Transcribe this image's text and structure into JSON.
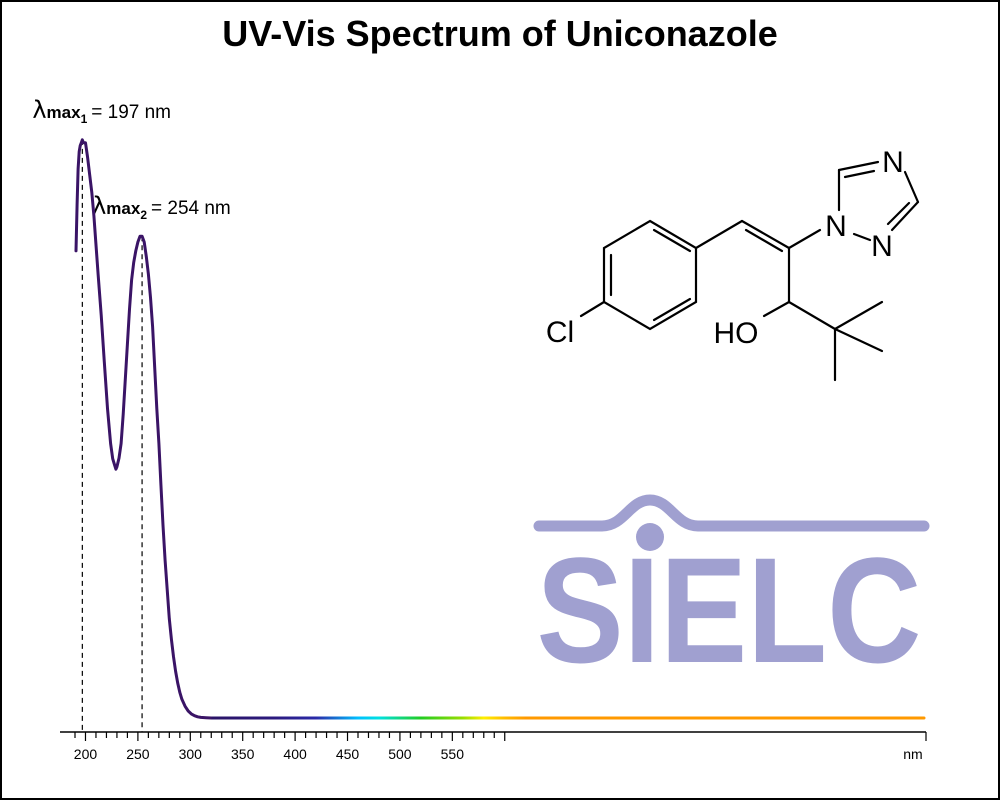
{
  "chart_data": {
    "type": "line",
    "title": "UV-Vis Spectrum of Uniconazole",
    "xlabel": "nm",
    "ylabel": "",
    "xlim": [
      190,
      1000
    ],
    "ylim": [
      0,
      1.0
    ],
    "x_ticks": [
      200,
      250,
      300,
      350,
      400,
      450,
      500,
      550
    ],
    "x_tick_labels": [
      "200",
      "250",
      "300",
      "350",
      "400",
      "450",
      "500",
      "550"
    ],
    "x_unit_label": "nm",
    "grid": false,
    "series": [
      {
        "x": [
          191,
          192,
          193,
          194,
          195,
          196,
          197,
          198,
          199,
          200,
          202,
          204,
          206,
          208,
          210,
          212,
          215,
          218,
          221,
          224,
          226,
          228,
          229,
          230,
          232,
          234,
          236,
          238,
          240,
          242,
          244,
          246,
          248,
          250,
          252,
          254,
          256,
          258,
          260,
          262,
          264,
          266,
          268,
          270,
          272,
          274,
          276,
          278,
          280,
          282,
          284,
          286,
          288,
          290,
          292,
          295,
          298,
          301,
          304,
          307,
          310,
          315,
          320,
          330,
          360,
          400,
          450,
          500,
          550,
          600,
          650,
          700,
          750,
          800,
          850,
          900,
          950,
          1000
        ],
        "y": [
          0.8,
          0.88,
          0.94,
          0.97,
          0.98,
          0.985,
          0.99,
          0.985,
          0.985,
          0.985,
          0.96,
          0.93,
          0.9,
          0.86,
          0.81,
          0.76,
          0.69,
          0.61,
          0.53,
          0.47,
          0.444,
          0.432,
          0.426,
          0.43,
          0.445,
          0.47,
          0.52,
          0.58,
          0.64,
          0.7,
          0.75,
          0.78,
          0.8,
          0.815,
          0.825,
          0.825,
          0.815,
          0.79,
          0.76,
          0.72,
          0.67,
          0.6,
          0.53,
          0.47,
          0.4,
          0.33,
          0.27,
          0.22,
          0.17,
          0.135,
          0.105,
          0.08,
          0.06,
          0.044,
          0.032,
          0.02,
          0.012,
          0.007,
          0.004,
          0.002,
          0.001,
          0.0005,
          0.0,
          0.0,
          0.0,
          0.0,
          0.0,
          0.0,
          0.0,
          0.0,
          0.0,
          0.0,
          0.0,
          0.0,
          0.0,
          0.0,
          0.0,
          0.0
        ]
      }
    ],
    "peaks": [
      {
        "x": 197,
        "label_main": "max",
        "label_sub": "1",
        "label_value": "= 197 nm"
      },
      {
        "x": 254,
        "label_main": "max",
        "label_sub": "2",
        "label_value": "= 254 nm"
      }
    ],
    "lambda_symbol": "λ",
    "line_color": "#3a1466",
    "gradient_stops": [
      {
        "x": 320,
        "color": "#2a1466"
      },
      {
        "x": 380,
        "color": "#2b1a7e"
      },
      {
        "x": 420,
        "color": "#2a2aa8"
      },
      {
        "x": 460,
        "color": "#00bfff"
      },
      {
        "x": 480,
        "color": "#00e0e0"
      },
      {
        "x": 520,
        "color": "#22cc22"
      },
      {
        "x": 560,
        "color": "#99dd00"
      },
      {
        "x": 580,
        "color": "#ffee00"
      },
      {
        "x": 600,
        "color": "#ffbb00"
      },
      {
        "x": 620,
        "color": "#ff9900"
      }
    ]
  },
  "molecule": {
    "name": "Uniconazole",
    "atoms": {
      "cl": "Cl",
      "ho": "HO",
      "n1": "N",
      "n_top": "N",
      "n_bottom": "N"
    }
  },
  "logo": {
    "text": "SIELC",
    "color": "#a0a0d0"
  }
}
